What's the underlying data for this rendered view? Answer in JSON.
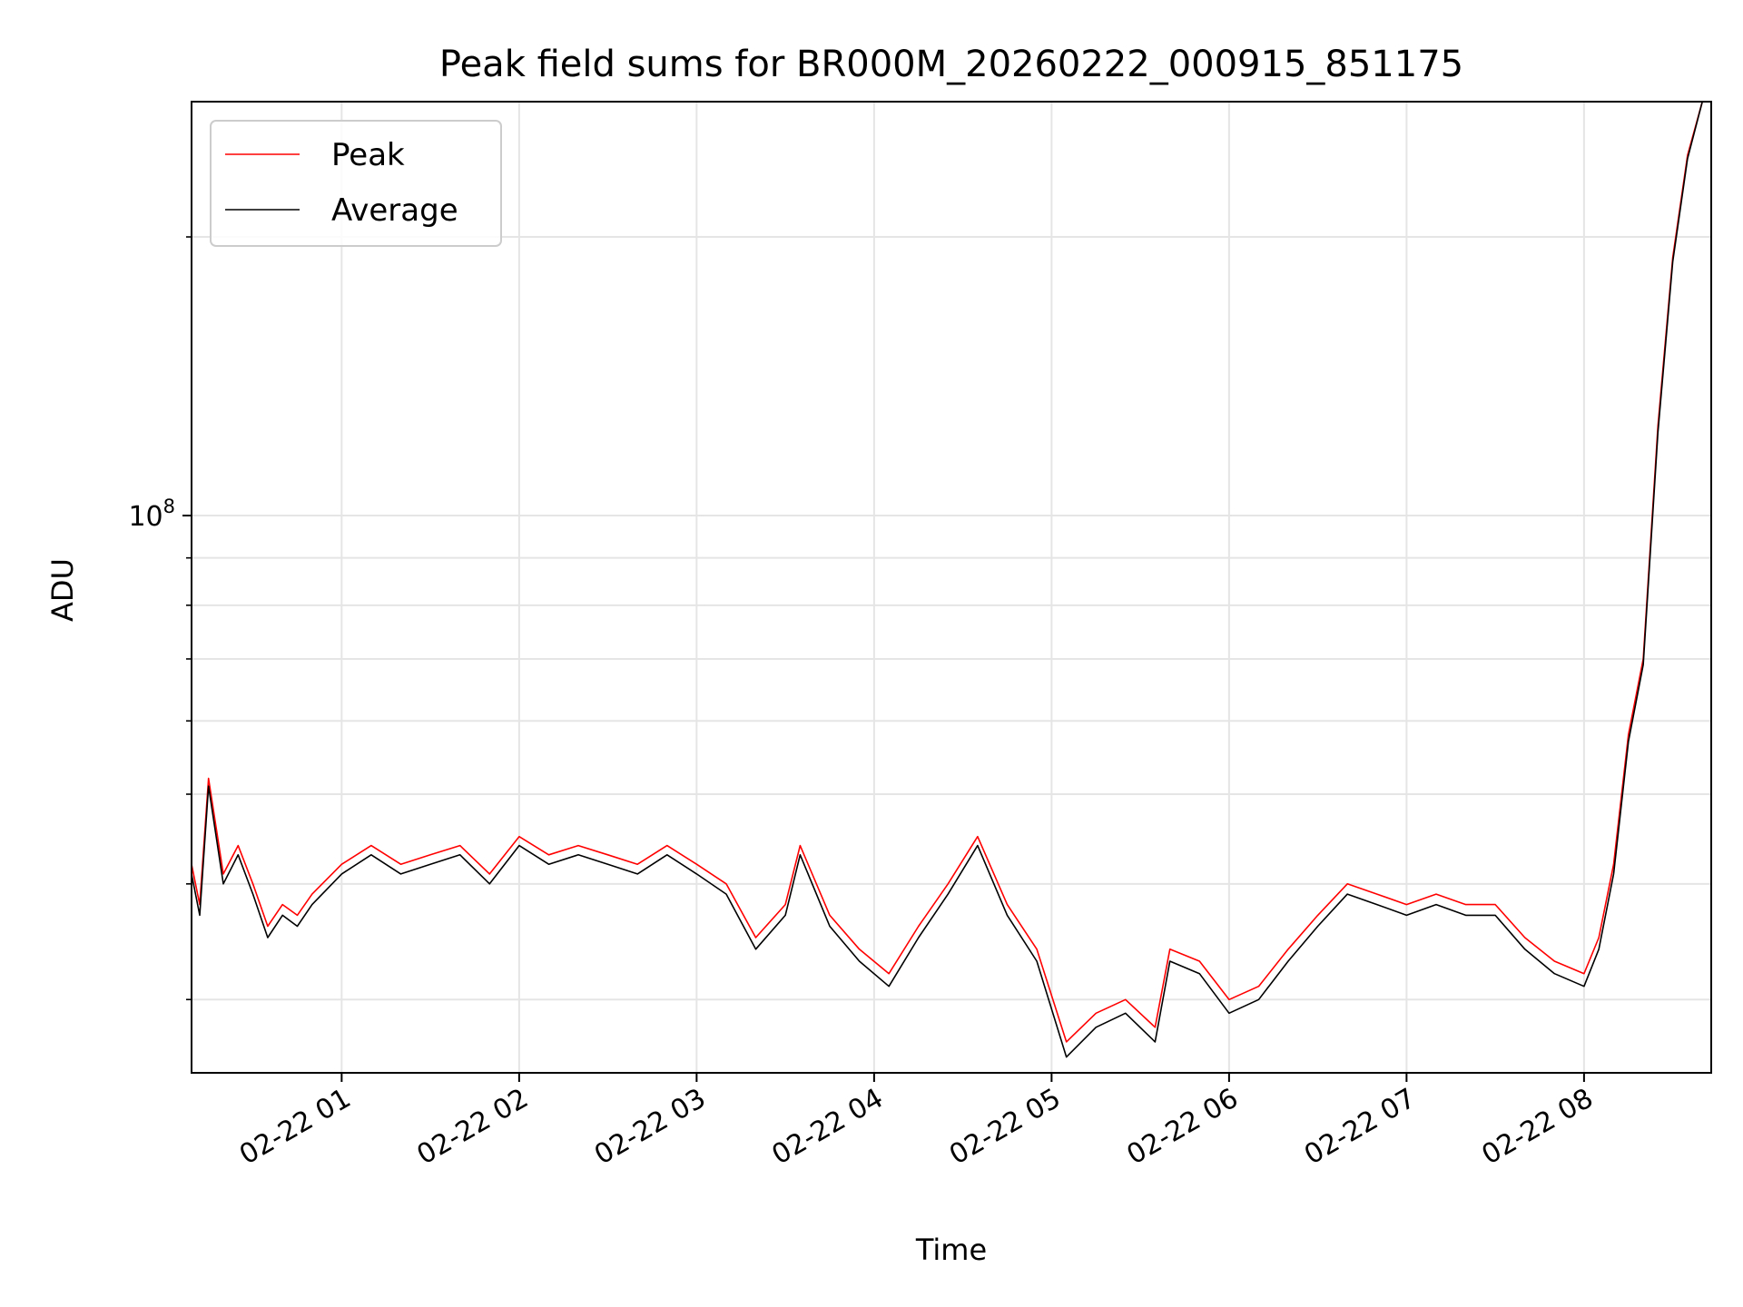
{
  "chart_data": {
    "type": "line",
    "title": "Peak field sums for BR000M_20260222_000915_851175",
    "xlabel": "Time",
    "ylabel": "ADU",
    "xlim": [
      "2026-02-22 00:09:15",
      "2026-02-22 08:43:00"
    ],
    "ylim": [
      25000000,
      280000000
    ],
    "yscale": "log",
    "grid": true,
    "legend": {
      "placement": "top-left"
    },
    "x_ticks": [
      "02-22 01",
      "02-22 02",
      "02-22 03",
      "02-22 04",
      "02-22 05",
      "02-22 06",
      "02-22 07",
      "02-22 08"
    ],
    "y_ticks": [
      {
        "label": "10",
        "exponent": "8",
        "value": 100000000
      }
    ],
    "series": [
      {
        "name": "Peak",
        "color": "#ff0000",
        "x": [
          "2026-02-22 00:09:15",
          "2026-02-22 00:12:00",
          "2026-02-22 00:15:00",
          "2026-02-22 00:20:00",
          "2026-02-22 00:25:00",
          "2026-02-22 00:30:00",
          "2026-02-22 00:35:00",
          "2026-02-22 00:40:00",
          "2026-02-22 00:45:00",
          "2026-02-22 00:50:00",
          "2026-02-22 01:00:00",
          "2026-02-22 01:10:00",
          "2026-02-22 01:20:00",
          "2026-02-22 01:30:00",
          "2026-02-22 01:40:00",
          "2026-02-22 01:50:00",
          "2026-02-22 02:00:00",
          "2026-02-22 02:10:00",
          "2026-02-22 02:20:00",
          "2026-02-22 02:30:00",
          "2026-02-22 02:40:00",
          "2026-02-22 02:50:00",
          "2026-02-22 03:00:00",
          "2026-02-22 03:10:00",
          "2026-02-22 03:20:00",
          "2026-02-22 03:30:00",
          "2026-02-22 03:35:00",
          "2026-02-22 03:45:00",
          "2026-02-22 03:55:00",
          "2026-02-22 04:05:00",
          "2026-02-22 04:15:00",
          "2026-02-22 04:25:00",
          "2026-02-22 04:35:00",
          "2026-02-22 04:45:00",
          "2026-02-22 04:55:00",
          "2026-02-22 05:05:00",
          "2026-02-22 05:15:00",
          "2026-02-22 05:25:00",
          "2026-02-22 05:35:00",
          "2026-02-22 05:40:00",
          "2026-02-22 05:50:00",
          "2026-02-22 06:00:00",
          "2026-02-22 06:10:00",
          "2026-02-22 06:20:00",
          "2026-02-22 06:30:00",
          "2026-02-22 06:40:00",
          "2026-02-22 06:50:00",
          "2026-02-22 07:00:00",
          "2026-02-22 07:10:00",
          "2026-02-22 07:20:00",
          "2026-02-22 07:30:00",
          "2026-02-22 07:40:00",
          "2026-02-22 07:50:00",
          "2026-02-22 08:00:00",
          "2026-02-22 08:05:00",
          "2026-02-22 08:10:00",
          "2026-02-22 08:15:00",
          "2026-02-22 08:20:00",
          "2026-02-22 08:25:00",
          "2026-02-22 08:30:00",
          "2026-02-22 08:35:00",
          "2026-02-22 08:40:00"
        ],
        "y": [
          42000000,
          38000000,
          52000000,
          41000000,
          44000000,
          40000000,
          36000000,
          38000000,
          37000000,
          39000000,
          42000000,
          44000000,
          42000000,
          43000000,
          44000000,
          41000000,
          45000000,
          43000000,
          44000000,
          43000000,
          42000000,
          44000000,
          42000000,
          40000000,
          35000000,
          38000000,
          44000000,
          37000000,
          34000000,
          32000000,
          36000000,
          40000000,
          45000000,
          38000000,
          34000000,
          27000000,
          29000000,
          30000000,
          28000000,
          34000000,
          33000000,
          30000000,
          31000000,
          34000000,
          37000000,
          40000000,
          39000000,
          38000000,
          39000000,
          38000000,
          38000000,
          35000000,
          33000000,
          32000000,
          35000000,
          42000000,
          58000000,
          70000000,
          125000000,
          190000000,
          245000000,
          280000000
        ]
      },
      {
        "name": "Average",
        "color": "#000000",
        "x": [
          "2026-02-22 00:09:15",
          "2026-02-22 00:12:00",
          "2026-02-22 00:15:00",
          "2026-02-22 00:20:00",
          "2026-02-22 00:25:00",
          "2026-02-22 00:30:00",
          "2026-02-22 00:35:00",
          "2026-02-22 00:40:00",
          "2026-02-22 00:45:00",
          "2026-02-22 00:50:00",
          "2026-02-22 01:00:00",
          "2026-02-22 01:10:00",
          "2026-02-22 01:20:00",
          "2026-02-22 01:30:00",
          "2026-02-22 01:40:00",
          "2026-02-22 01:50:00",
          "2026-02-22 02:00:00",
          "2026-02-22 02:10:00",
          "2026-02-22 02:20:00",
          "2026-02-22 02:30:00",
          "2026-02-22 02:40:00",
          "2026-02-22 02:50:00",
          "2026-02-22 03:00:00",
          "2026-02-22 03:10:00",
          "2026-02-22 03:20:00",
          "2026-02-22 03:30:00",
          "2026-02-22 03:35:00",
          "2026-02-22 03:45:00",
          "2026-02-22 03:55:00",
          "2026-02-22 04:05:00",
          "2026-02-22 04:15:00",
          "2026-02-22 04:25:00",
          "2026-02-22 04:35:00",
          "2026-02-22 04:45:00",
          "2026-02-22 04:55:00",
          "2026-02-22 05:05:00",
          "2026-02-22 05:15:00",
          "2026-02-22 05:25:00",
          "2026-02-22 05:35:00",
          "2026-02-22 05:40:00",
          "2026-02-22 05:50:00",
          "2026-02-22 06:00:00",
          "2026-02-22 06:10:00",
          "2026-02-22 06:20:00",
          "2026-02-22 06:30:00",
          "2026-02-22 06:40:00",
          "2026-02-22 06:50:00",
          "2026-02-22 07:00:00",
          "2026-02-22 07:10:00",
          "2026-02-22 07:20:00",
          "2026-02-22 07:30:00",
          "2026-02-22 07:40:00",
          "2026-02-22 07:50:00",
          "2026-02-22 08:00:00",
          "2026-02-22 08:05:00",
          "2026-02-22 08:10:00",
          "2026-02-22 08:15:00",
          "2026-02-22 08:20:00",
          "2026-02-22 08:25:00",
          "2026-02-22 08:30:00",
          "2026-02-22 08:35:00",
          "2026-02-22 08:40:00"
        ],
        "y": [
          41000000,
          37000000,
          51000000,
          40000000,
          43000000,
          39000000,
          35000000,
          37000000,
          36000000,
          38000000,
          41000000,
          43000000,
          41000000,
          42000000,
          43000000,
          40000000,
          44000000,
          42000000,
          43000000,
          42000000,
          41000000,
          43000000,
          41000000,
          39000000,
          34000000,
          37000000,
          43000000,
          36000000,
          33000000,
          31000000,
          35000000,
          39000000,
          44000000,
          37000000,
          33000000,
          26000000,
          28000000,
          29000000,
          27000000,
          33000000,
          32000000,
          29000000,
          30000000,
          33000000,
          36000000,
          39000000,
          38000000,
          37000000,
          38000000,
          37000000,
          37000000,
          34000000,
          32000000,
          31000000,
          34000000,
          41000000,
          57000000,
          69000000,
          123000000,
          188000000,
          243000000,
          280000000
        ]
      }
    ]
  }
}
